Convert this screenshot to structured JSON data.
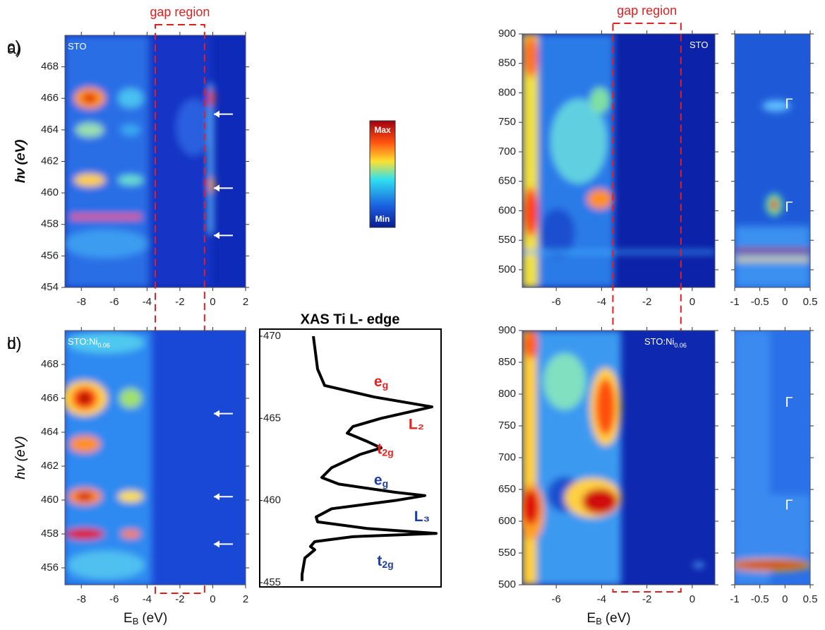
{
  "chart_data": [
    {
      "type": "heatmap",
      "panel_label": "a)",
      "inset_label": "STO",
      "xlim": [
        -9,
        2
      ],
      "xticks": [
        -8,
        -6,
        -4,
        -2,
        0,
        2
      ],
      "ylim": [
        454,
        470
      ],
      "yticks": [
        454,
        456,
        458,
        460,
        462,
        464,
        466,
        468
      ],
      "y_label": "hν (eV)",
      "arrows": [
        465,
        460.3,
        457.3
      ],
      "gap_label": "gap region",
      "gap_region": [
        -3.5,
        -0.5
      ]
    },
    {
      "type": "heatmap",
      "panel_label": "b)",
      "inset_label": "STO:Ni",
      "inset_label_sub": "0.06",
      "xlim": [
        -9,
        2
      ],
      "xticks": [
        -8,
        -6,
        -4,
        -2,
        0,
        2
      ],
      "ylim": [
        455,
        470
      ],
      "yticks": [
        456,
        458,
        460,
        462,
        464,
        466,
        468
      ],
      "y_label": "hν (eV)",
      "x_label": "E",
      "x_label_sub": "B",
      "x_label_unit": "(eV)",
      "arrows": [
        465.1,
        460.2,
        457.4
      ]
    },
    {
      "type": "colorbar",
      "max_label": "Max",
      "min_label": "Min"
    },
    {
      "type": "line",
      "title": "XAS Ti L- edge",
      "color": "#000000",
      "x": [
        470,
        468,
        467,
        466.3,
        465.7,
        465,
        464.5,
        464.1,
        463.6,
        463.2,
        462.8,
        462,
        461.4,
        461,
        460.5,
        460.3,
        460,
        459.5,
        459,
        458.7,
        458.3,
        458,
        457.8,
        457.5,
        457.2,
        457,
        456.5,
        456,
        455.5,
        455.1
      ],
      "values": [
        0.12,
        0.15,
        0.2,
        0.55,
        0.96,
        0.6,
        0.4,
        0.36,
        0.5,
        0.6,
        0.45,
        0.25,
        0.18,
        0.3,
        0.7,
        0.91,
        0.7,
        0.25,
        0.14,
        0.15,
        0.5,
        0.99,
        0.4,
        0.13,
        0.1,
        0.13,
        0.06,
        0.05,
        0.04,
        0.04
      ],
      "ylim": [
        455,
        470
      ],
      "yticks": [
        455,
        460,
        465,
        470
      ],
      "annotations": [
        {
          "text": "e",
          "sub": "g",
          "x": 0.6,
          "y": 467.2,
          "color": "#e8201e"
        },
        {
          "text": "L₂",
          "x": 0.85,
          "y": 464.6,
          "color": "#e8201e"
        },
        {
          "text": "t",
          "sub": "2g",
          "x": 0.63,
          "y": 463.1,
          "color": "#e8201e"
        },
        {
          "text": "e",
          "sub": "g",
          "x": 0.6,
          "y": 461.2,
          "color": "#1f3d9a"
        },
        {
          "text": "L₃",
          "x": 0.89,
          "y": 459.0,
          "color": "#1f3d9a"
        },
        {
          "text": "t",
          "sub": "2g",
          "x": 0.63,
          "y": 456.3,
          "color": "#1f3d9a"
        }
      ]
    },
    {
      "type": "heatmap",
      "panel_label": "c)",
      "inset_label": "STO",
      "xlim": [
        -7.5,
        1
      ],
      "xticks": [
        -6,
        -4,
        -2,
        0
      ],
      "ylim": [
        470,
        900
      ],
      "yticks": [
        500,
        550,
        600,
        650,
        700,
        750,
        800,
        850,
        900
      ],
      "y_label": "hν (eV)",
      "gap_label": "gap region",
      "gap_region": [
        -3.5,
        -0.5
      ]
    },
    {
      "type": "heatmap",
      "xlim": [
        -1,
        0.5
      ],
      "xticks": [
        -1,
        -0.5,
        0,
        0.5
      ],
      "ylim": [
        470,
        900
      ],
      "yticks": [
        500,
        550,
        600,
        650,
        700,
        750,
        800,
        850,
        900
      ],
      "annotations": [
        {
          "text": "Γ",
          "x": 0.08,
          "y": 780
        },
        {
          "text": "Γ",
          "x": 0.08,
          "y": 605
        }
      ]
    },
    {
      "type": "heatmap",
      "panel_label": "d)",
      "inset_label": "STO:Ni",
      "inset_label_sub": "0.06",
      "xlim": [
        -7.5,
        1
      ],
      "xticks": [
        -6,
        -4,
        -2,
        0
      ],
      "ylim": [
        500,
        900
      ],
      "yticks": [
        500,
        550,
        600,
        650,
        700,
        750,
        800,
        850,
        900
      ],
      "y_label": "hν (eV)",
      "x_label": "E",
      "x_label_sub": "B",
      "x_label_unit": "(eV)"
    },
    {
      "type": "heatmap",
      "xlim": [
        -1,
        0.5
      ],
      "xticks": [
        -1,
        -0.5,
        0,
        0.5
      ],
      "ylim": [
        500,
        900
      ],
      "yticks": [
        500,
        550,
        600,
        650,
        700,
        750,
        800,
        850,
        900
      ],
      "annotations": [
        {
          "text": "Γ",
          "x": 0.08,
          "y": 786
        },
        {
          "text": "Γ",
          "x": 0.08,
          "y": 624
        }
      ]
    }
  ]
}
